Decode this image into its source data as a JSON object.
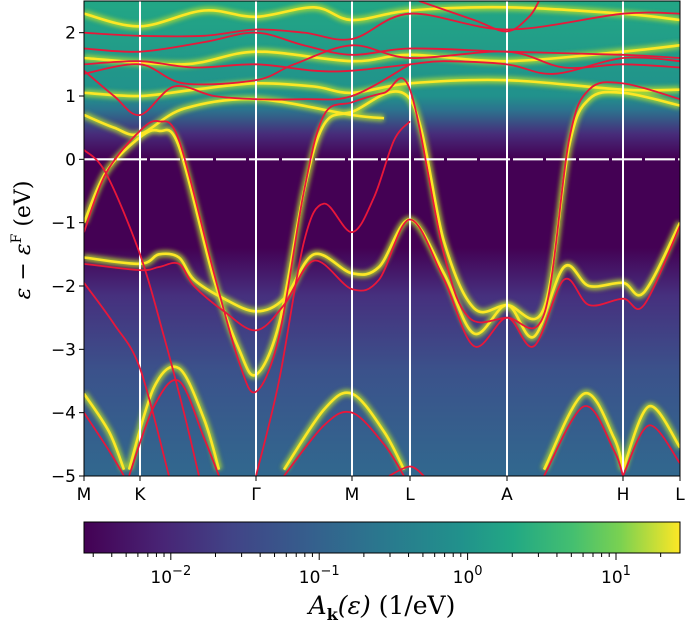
{
  "chart_data": {
    "type": "heatmap",
    "description_kind": "spectral function with overlaid band lines",
    "ylabel": {
      "main": "ε − ε",
      "sup": "F",
      "unit": "(eV)"
    },
    "ylim": [
      -5,
      2.5
    ],
    "yticks": [
      -5,
      -4,
      -3,
      -2,
      -1,
      0,
      1,
      2
    ],
    "ytick_labels": [
      "−5",
      "−4",
      "−3",
      "−2",
      "−1",
      "0",
      "1",
      "2"
    ],
    "xticks": [
      {
        "label": "M",
        "k": 0
      },
      {
        "label": "K",
        "k": 0.56
      },
      {
        "label": "Γ",
        "k": 1.72
      },
      {
        "label": "M",
        "k": 2.68
      },
      {
        "label": "L",
        "k": 3.26
      },
      {
        "label": "A",
        "k": 4.23
      },
      {
        "label": "H",
        "k": 5.39
      },
      {
        "label": "L",
        "k": 5.96
      }
    ],
    "xlim": [
      0,
      5.96
    ],
    "fermi_level": 0,
    "colormap": "viridis",
    "colorbar": {
      "scale": "log",
      "range": [
        0.0026,
        27
      ],
      "ticks": [
        {
          "value": 0.01,
          "base": "10",
          "exp": "−2"
        },
        {
          "value": 0.1,
          "base": "10",
          "exp": "−1"
        },
        {
          "value": 1,
          "base": "10",
          "exp": "0"
        },
        {
          "value": 10,
          "base": "10",
          "exp": "1"
        }
      ],
      "label": {
        "A": "A",
        "sub": "k",
        "arg": "(ε)",
        "unit": "(1/eV)"
      },
      "placement": "bottom"
    },
    "colors": {
      "dft_bands": "#e8173a",
      "spectral_peak": "#fde725",
      "symmetry_lines": "#ffffff"
    },
    "series": [
      {
        "kind": "dft",
        "points": [
          [
            0,
            -1.15
          ],
          [
            0.22,
            -0.22
          ],
          [
            0.56,
            0.45
          ],
          [
            0.75,
            0.6
          ],
          [
            0.95,
            0.3
          ],
          [
            1.3,
            -1.8
          ],
          [
            1.55,
            -3.2
          ],
          [
            1.72,
            -3.67
          ],
          [
            1.95,
            -2.8
          ],
          [
            2.2,
            -0.5
          ],
          [
            2.4,
            0.7
          ],
          [
            2.68,
            0.9
          ],
          [
            3.0,
            1.05
          ],
          [
            3.26,
            1.1
          ],
          [
            3.6,
            -1.5
          ],
          [
            3.85,
            -2.5
          ],
          [
            4.23,
            -2.5
          ],
          [
            4.6,
            -2.45
          ],
          [
            4.85,
            0.3
          ],
          [
            5.05,
            1.1
          ],
          [
            5.39,
            1.2
          ],
          [
            5.96,
            0.95
          ]
        ]
      },
      {
        "kind": "dft",
        "points": [
          [
            0,
            0.15
          ],
          [
            0.22,
            -0.22
          ],
          [
            0.56,
            -1.5
          ],
          [
            0.8,
            -2.8
          ],
          [
            1.0,
            -4.0
          ],
          [
            1.15,
            -5
          ]
        ]
      },
      {
        "kind": "dft",
        "points": [
          [
            0,
            -1.65
          ],
          [
            0.56,
            -1.75
          ],
          [
            0.75,
            -1.7
          ],
          [
            0.95,
            -1.65
          ],
          [
            1.1,
            -2.0
          ],
          [
            1.4,
            -2.4
          ],
          [
            1.72,
            -2.7
          ],
          [
            2.0,
            -2.3
          ],
          [
            2.3,
            -1.6
          ],
          [
            2.68,
            -2.05
          ],
          [
            2.95,
            -1.9
          ],
          [
            3.26,
            -0.95
          ],
          [
            3.6,
            -1.9
          ],
          [
            3.9,
            -2.95
          ],
          [
            4.23,
            -2.5
          ],
          [
            4.5,
            -2.95
          ],
          [
            4.8,
            -1.9
          ],
          [
            5.05,
            -2.3
          ],
          [
            5.39,
            -2.2
          ],
          [
            5.6,
            -2.3
          ],
          [
            5.96,
            -1.05
          ]
        ]
      },
      {
        "kind": "dft",
        "points": [
          [
            0,
            -4.0
          ],
          [
            0.25,
            -4.6
          ],
          [
            0.4,
            -5.0
          ]
        ]
      },
      {
        "kind": "dft",
        "points": [
          [
            0,
            -1.95
          ],
          [
            0.3,
            -2.6
          ],
          [
            0.56,
            -3.3
          ],
          [
            0.85,
            -5
          ]
        ]
      },
      {
        "kind": "dft",
        "points": [
          [
            0.45,
            -5
          ],
          [
            0.7,
            -3.9
          ],
          [
            0.95,
            -3.5
          ],
          [
            1.2,
            -4.4
          ],
          [
            1.35,
            -5
          ]
        ]
      },
      {
        "kind": "dft",
        "points": [
          [
            2.0,
            -5
          ],
          [
            2.4,
            -4.2
          ],
          [
            2.68,
            -4.0
          ],
          [
            3.0,
            -4.5
          ],
          [
            3.2,
            -5
          ]
        ]
      },
      {
        "kind": "dft",
        "points": [
          [
            1.72,
            -5
          ],
          [
            1.95,
            -3.5
          ],
          [
            2.2,
            -1.3
          ],
          [
            2.4,
            -0.7
          ],
          [
            2.68,
            -1.15
          ],
          [
            2.9,
            -0.6
          ],
          [
            3.1,
            0.3
          ],
          [
            3.26,
            0.6
          ]
        ]
      },
      {
        "kind": "dft",
        "points": [
          [
            0,
            1.4
          ],
          [
            0.3,
            1.0
          ],
          [
            0.56,
            0.7
          ],
          [
            0.9,
            1.15
          ],
          [
            1.3,
            1.0
          ],
          [
            1.72,
            0.95
          ],
          [
            2.2,
            0.95
          ],
          [
            2.68,
            1.0
          ],
          [
            3.26,
            1.5
          ]
        ]
      },
      {
        "kind": "dft",
        "points": [
          [
            0,
            1.5
          ],
          [
            0.56,
            1.55
          ],
          [
            1.1,
            1.45
          ],
          [
            1.72,
            1.5
          ],
          [
            2.3,
            1.4
          ],
          [
            2.68,
            1.4
          ],
          [
            3.26,
            1.5
          ],
          [
            3.6,
            1.55
          ],
          [
            4.23,
            1.5
          ],
          [
            4.7,
            1.35
          ],
          [
            5.39,
            1.6
          ],
          [
            5.96,
            1.55
          ]
        ]
      },
      {
        "kind": "dft",
        "points": [
          [
            0,
            1.75
          ],
          [
            0.56,
            1.7
          ],
          [
            1.2,
            1.85
          ],
          [
            1.72,
            2.0
          ],
          [
            2.2,
            1.8
          ],
          [
            2.68,
            1.65
          ],
          [
            3.26,
            1.75
          ],
          [
            4.23,
            1.7
          ],
          [
            5.39,
            1.65
          ],
          [
            5.96,
            1.6
          ]
        ]
      },
      {
        "kind": "dft",
        "points": [
          [
            0,
            2.0
          ],
          [
            0.56,
            1.95
          ],
          [
            1.2,
            1.95
          ],
          [
            1.72,
            2.05
          ],
          [
            2.2,
            2.0
          ],
          [
            2.68,
            1.9
          ],
          [
            3.26,
            2.3
          ],
          [
            4.23,
            2.05
          ],
          [
            5.39,
            2.3
          ],
          [
            5.96,
            2.3
          ]
        ]
      },
      {
        "kind": "dft",
        "points": [
          [
            0,
            1.35
          ],
          [
            0.56,
            1.5
          ],
          [
            1.0,
            1.2
          ],
          [
            1.72,
            1.25
          ],
          [
            2.1,
            1.5
          ],
          [
            2.68,
            1.8
          ],
          [
            3.26,
            1.6
          ],
          [
            4.23,
            1.7
          ],
          [
            4.8,
            1.45
          ],
          [
            5.39,
            1.5
          ],
          [
            5.96,
            1.45
          ]
        ]
      },
      {
        "kind": "dft",
        "points": [
          [
            3.35,
            2.5
          ],
          [
            3.9,
            2.2
          ],
          [
            4.23,
            2.02
          ],
          [
            4.45,
            2.25
          ],
          [
            4.55,
            2.5
          ]
        ]
      },
      {
        "kind": "dft",
        "points": [
          [
            4.6,
            -5
          ],
          [
            5.0,
            -3.9
          ],
          [
            5.3,
            -4.6
          ],
          [
            5.39,
            -5
          ]
        ]
      },
      {
        "kind": "dft",
        "points": [
          [
            5.39,
            -5
          ],
          [
            5.65,
            -4.2
          ],
          [
            5.96,
            -4.8
          ]
        ]
      },
      {
        "kind": "dft",
        "points": [
          [
            3.05,
            -5
          ],
          [
            3.26,
            -4.85
          ],
          [
            3.4,
            -5
          ]
        ]
      },
      {
        "kind": "spectral",
        "points": [
          [
            0,
            -1.0
          ],
          [
            0.22,
            -0.2
          ],
          [
            0.56,
            0.35
          ],
          [
            0.75,
            0.45
          ],
          [
            0.95,
            0.2
          ],
          [
            1.3,
            -1.9
          ],
          [
            1.55,
            -3.0
          ],
          [
            1.72,
            -3.4
          ],
          [
            1.95,
            -2.6
          ],
          [
            2.2,
            -0.5
          ],
          [
            2.4,
            0.55
          ],
          [
            2.68,
            0.75
          ],
          [
            3.26,
            0.95
          ],
          [
            3.6,
            -1.3
          ],
          [
            3.9,
            -2.35
          ],
          [
            4.23,
            -2.3
          ],
          [
            4.6,
            -2.35
          ],
          [
            4.85,
            0.2
          ],
          [
            5.05,
            0.95
          ],
          [
            5.39,
            1.05
          ],
          [
            5.96,
            0.85
          ]
        ]
      },
      {
        "kind": "spectral",
        "points": [
          [
            0,
            -1.55
          ],
          [
            0.56,
            -1.65
          ],
          [
            0.75,
            -1.5
          ],
          [
            0.95,
            -1.55
          ],
          [
            1.1,
            -1.9
          ],
          [
            1.4,
            -2.2
          ],
          [
            1.72,
            -2.4
          ],
          [
            2.0,
            -2.2
          ],
          [
            2.3,
            -1.5
          ],
          [
            2.68,
            -1.8
          ],
          [
            2.95,
            -1.7
          ],
          [
            3.26,
            -0.95
          ],
          [
            3.6,
            -1.8
          ],
          [
            3.9,
            -2.75
          ],
          [
            4.23,
            -2.3
          ],
          [
            4.5,
            -2.8
          ],
          [
            4.8,
            -1.7
          ],
          [
            5.05,
            -2.0
          ],
          [
            5.39,
            -1.95
          ],
          [
            5.6,
            -2.1
          ],
          [
            5.96,
            -1.0
          ]
        ]
      },
      {
        "kind": "spectral",
        "points": [
          [
            0,
            -3.7
          ],
          [
            0.25,
            -4.3
          ],
          [
            0.4,
            -4.9
          ]
        ]
      },
      {
        "kind": "spectral",
        "points": [
          [
            0.45,
            -4.9
          ],
          [
            0.7,
            -3.6
          ],
          [
            0.95,
            -3.3
          ],
          [
            1.2,
            -4.1
          ],
          [
            1.35,
            -4.9
          ]
        ]
      },
      {
        "kind": "spectral",
        "points": [
          [
            2.0,
            -4.9
          ],
          [
            2.4,
            -3.95
          ],
          [
            2.68,
            -3.7
          ],
          [
            3.0,
            -4.3
          ],
          [
            3.2,
            -4.9
          ]
        ]
      },
      {
        "kind": "spectral",
        "points": [
          [
            4.6,
            -4.9
          ],
          [
            5.0,
            -3.7
          ],
          [
            5.3,
            -4.4
          ],
          [
            5.39,
            -4.9
          ]
        ]
      },
      {
        "kind": "spectral",
        "points": [
          [
            5.39,
            -4.9
          ],
          [
            5.65,
            -3.9
          ],
          [
            5.96,
            -4.55
          ]
        ]
      },
      {
        "kind": "spectral",
        "points": [
          [
            0,
            1.05
          ],
          [
            0.56,
            1.0
          ],
          [
            1.1,
            1.1
          ],
          [
            1.72,
            1.2
          ],
          [
            2.3,
            1.15
          ],
          [
            2.68,
            1.05
          ],
          [
            3.26,
            1.2
          ],
          [
            4.23,
            1.25
          ],
          [
            5.39,
            1.1
          ],
          [
            5.96,
            1.1
          ]
        ]
      },
      {
        "kind": "spectral",
        "points": [
          [
            0,
            0.7
          ],
          [
            0.3,
            0.5
          ],
          [
            0.56,
            0.4
          ],
          [
            1.0,
            0.8
          ],
          [
            1.72,
            0.95
          ],
          [
            2.68,
            0.7
          ],
          [
            3.0,
            0.65
          ]
        ]
      },
      {
        "kind": "spectral",
        "points": [
          [
            0,
            1.6
          ],
          [
            1.0,
            1.5
          ],
          [
            1.72,
            1.7
          ],
          [
            2.68,
            1.55
          ],
          [
            3.26,
            1.65
          ],
          [
            4.23,
            1.55
          ],
          [
            5.39,
            1.7
          ],
          [
            5.96,
            1.8
          ]
        ]
      },
      {
        "kind": "spectral",
        "points": [
          [
            0,
            2.3
          ],
          [
            0.56,
            2.1
          ],
          [
            1.2,
            2.35
          ],
          [
            1.72,
            2.25
          ],
          [
            2.3,
            2.4
          ],
          [
            2.68,
            2.2
          ],
          [
            3.26,
            2.35
          ],
          [
            4.23,
            2.4
          ],
          [
            5.39,
            2.3
          ],
          [
            5.96,
            2.2
          ]
        ]
      }
    ]
  }
}
